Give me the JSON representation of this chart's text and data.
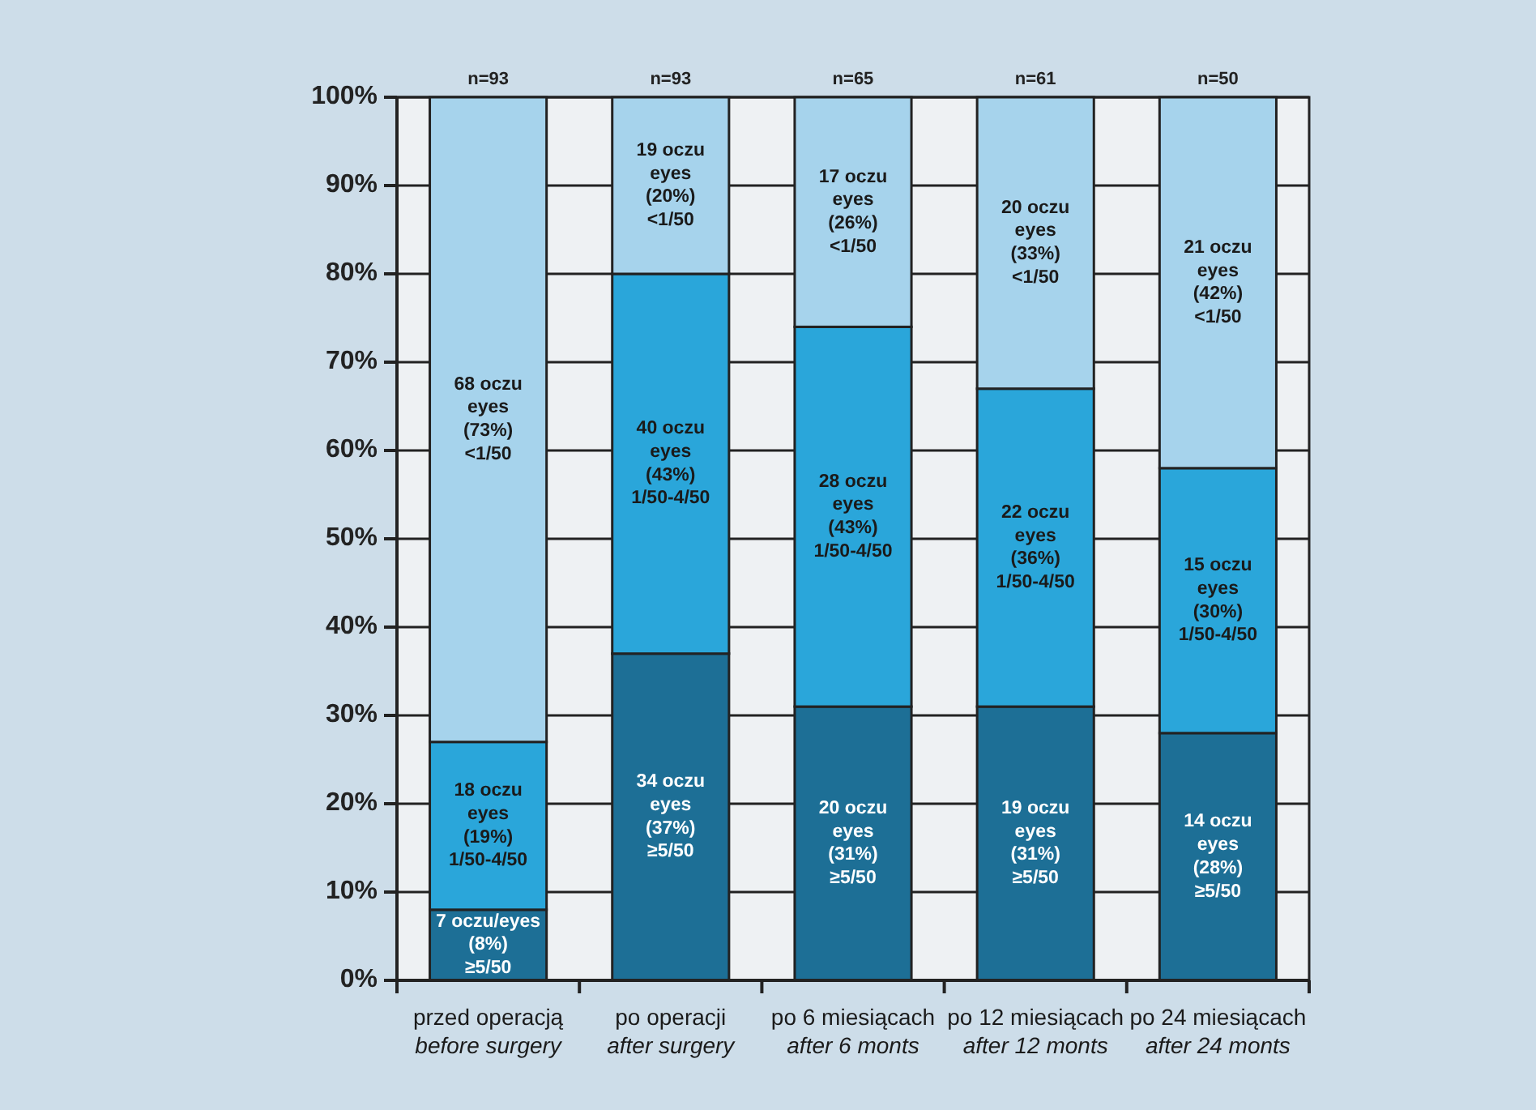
{
  "chart_data": {
    "type": "bar",
    "stacked": true,
    "categories": [
      "przed operacją\nbefore surgery",
      "po operacji\nafter surgery",
      "po 6 miesiącach\nafter 6 monts",
      "po 12 miesiącach\nafter 12 monts",
      "po 24 miesiącach\nafter 24 monts"
    ],
    "series": [
      {
        "color": "#1d6f96",
        "values": [
          8,
          37,
          31,
          31,
          28
        ],
        "value_labels": [
          "7 oczu/eyes\n(8%)\n≥5/50",
          "34 oczu\neyes\n(37%)\n≥5/50",
          "20 oczu\neyes\n(31%)\n≥5/50",
          "19 oczu\neyes\n(31%)\n≥5/50",
          "14 oczu\neyes\n(28%)\n≥5/50"
        ]
      },
      {
        "color": "#2aa6da",
        "values": [
          19,
          43,
          43,
          36,
          30
        ],
        "value_labels": [
          "18 oczu\neyes\n(19%)\n1/50-4/50",
          "40 oczu\neyes\n(43%)\n1/50-4/50",
          "28 oczu\neyes\n(43%)\n1/50-4/50",
          "22 oczu\neyes\n(36%)\n1/50-4/50",
          "15 oczu\neyes\n(30%)\n1/50-4/50"
        ]
      },
      {
        "color": "#a6d3ec",
        "values": [
          73,
          20,
          26,
          33,
          42
        ],
        "value_labels": [
          "68 oczu\neyes\n(73%)\n<1/50",
          "19 oczu\neyes\n(20%)\n<1/50",
          "17 oczu\neyes\n(26%)\n<1/50",
          "20 oczu\neyes\n(33%)\n<1/50",
          "21 oczu\neyes\n(42%)\n<1/50"
        ]
      }
    ],
    "annotations": [
      {
        "text": "n=93",
        "x": "przed operacją\nbefore surgery",
        "y": 100
      },
      {
        "text": "n=93",
        "x": "po operacji\nafter surgery",
        "y": 100
      },
      {
        "text": "n=65",
        "x": "po 6 miesiącach\nafter 6 monts",
        "y": 100
      },
      {
        "text": "n=61",
        "x": "po 12 miesiącach\nafter 12 monts",
        "y": 100
      },
      {
        "text": "n=50",
        "x": "po 24 miesiącach\nafter 24 monts",
        "y": 100
      }
    ],
    "ylim": [
      0,
      100
    ],
    "yticks": [
      {
        "value": 0,
        "label": "0%"
      },
      {
        "value": 10,
        "label": "10%"
      },
      {
        "value": 20,
        "label": "20%"
      },
      {
        "value": 30,
        "label": "30%"
      },
      {
        "value": 40,
        "label": "40%"
      },
      {
        "value": 50,
        "label": "50%"
      },
      {
        "value": 60,
        "label": "60%"
      },
      {
        "value": 70,
        "label": "70%"
      },
      {
        "value": 80,
        "label": "80%"
      },
      {
        "value": 90,
        "label": "90%"
      },
      {
        "value": 100,
        "label": "100%"
      }
    ],
    "grid": "y"
  }
}
